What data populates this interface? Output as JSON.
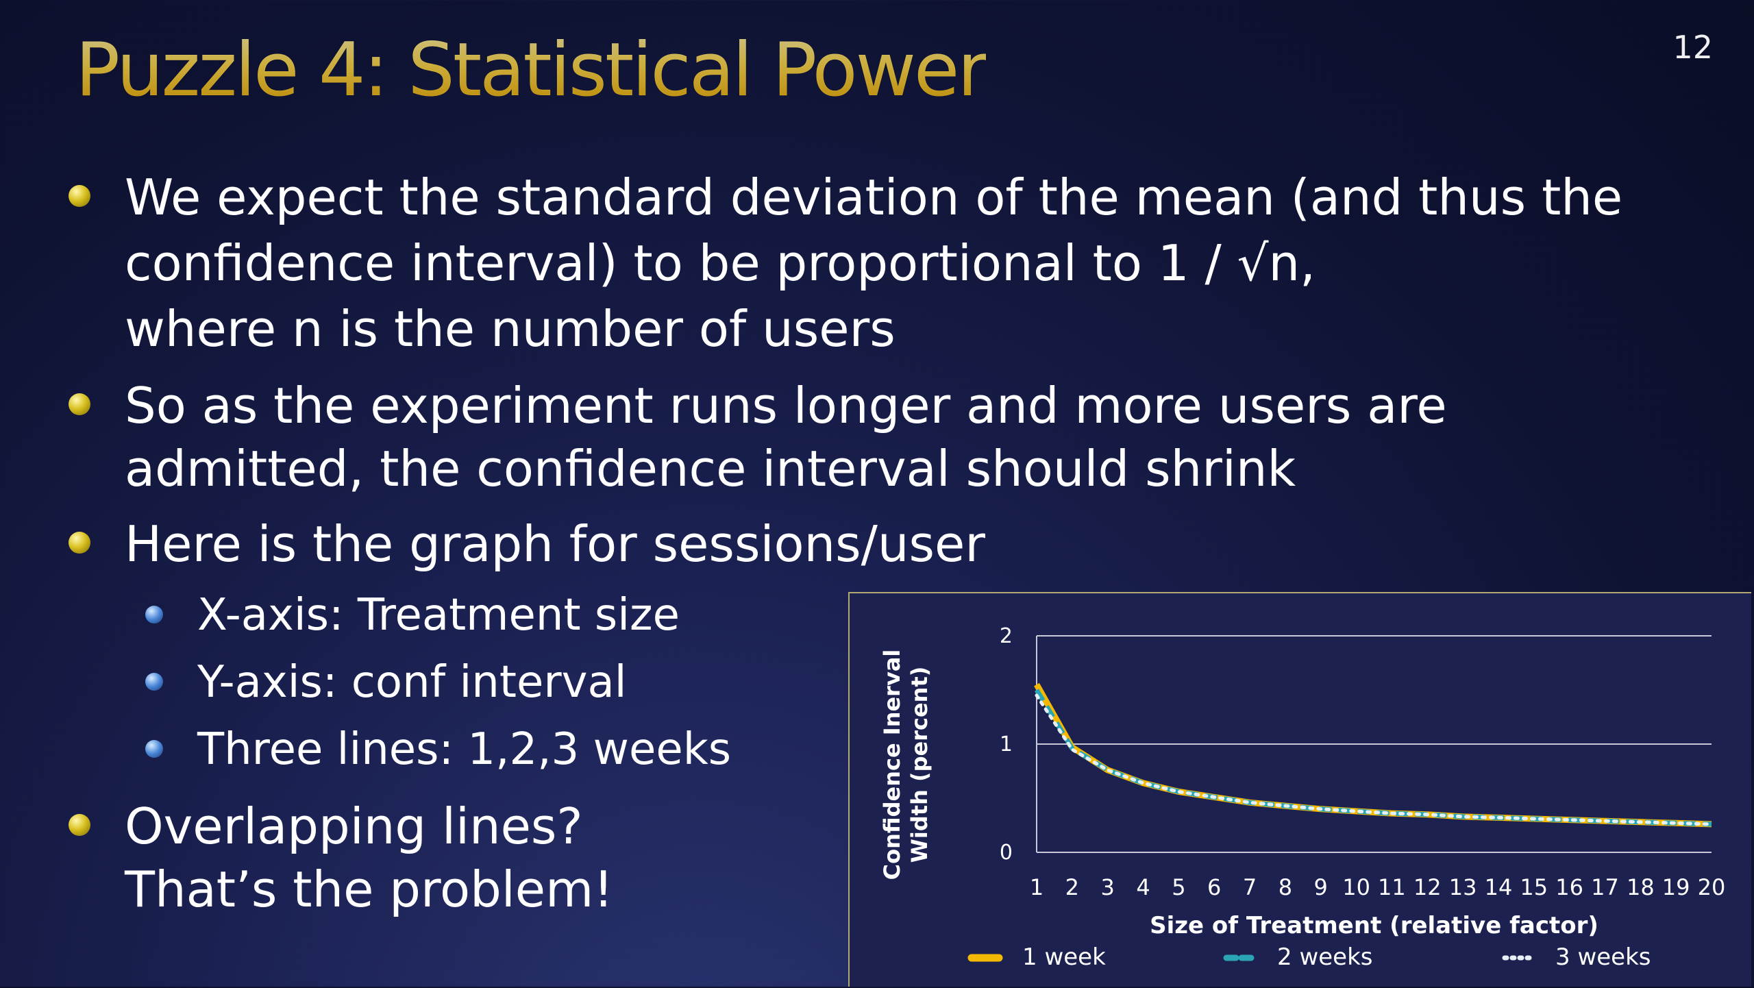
{
  "slide": {
    "number": "12",
    "title": "Puzzle 4: Statistical Power"
  },
  "bullets": [
    {
      "lines": [
        "We expect the standard deviation of the mean (and thus the",
        "confidence interval) to be proportional to 1 / √n,",
        "where n is the number of users"
      ]
    },
    {
      "lines": [
        "So as the experiment runs longer and more users are",
        "admitted, the confidence interval should shrink"
      ]
    },
    {
      "lines": [
        "Here is the graph for sessions/user"
      ],
      "sub": [
        "X-axis: Treatment size",
        "Y-axis: conf interval",
        "Three lines: 1,2,3 weeks"
      ]
    },
    {
      "lines": [
        "Overlapping lines?",
        "That’s the problem!"
      ]
    }
  ],
  "chart_data": {
    "type": "line",
    "title": "",
    "xlabel": "Size of Treatment (relative factor)",
    "ylabel": "Confidence Inerval Width (percent)",
    "ylabel_lines": [
      "Confidence Inerval",
      "Width (percent)"
    ],
    "x": [
      1,
      2,
      3,
      4,
      5,
      6,
      7,
      8,
      9,
      10,
      11,
      12,
      13,
      14,
      15,
      16,
      17,
      18,
      19,
      20
    ],
    "x_tick_labels": [
      "1",
      "2",
      "3",
      "4",
      "5",
      "6",
      "7",
      "8",
      "9",
      "10",
      "11",
      "12",
      "13",
      "14",
      "15",
      "16",
      "17",
      "18",
      "19",
      "20"
    ],
    "y_tick_labels": [
      "0",
      "1",
      "2"
    ],
    "ylim": [
      0,
      2
    ],
    "grid": true,
    "legend_position": "bottom",
    "series": [
      {
        "name": "1 week",
        "color": "#f5b800",
        "style": "solid",
        "values": [
          1.55,
          0.97,
          0.76,
          0.64,
          0.56,
          0.51,
          0.46,
          0.43,
          0.4,
          0.38,
          0.36,
          0.35,
          0.33,
          0.32,
          0.31,
          0.3,
          0.29,
          0.28,
          0.27,
          0.26
        ]
      },
      {
        "name": "2 weeks",
        "color": "#2aa5b5",
        "style": "dashed",
        "values": [
          1.5,
          0.96,
          0.76,
          0.64,
          0.56,
          0.51,
          0.46,
          0.43,
          0.4,
          0.38,
          0.36,
          0.35,
          0.33,
          0.32,
          0.31,
          0.3,
          0.29,
          0.28,
          0.27,
          0.26
        ]
      },
      {
        "name": "3 weeks",
        "color": "#e6f0f5",
        "style": "dotted",
        "values": [
          1.45,
          0.95,
          0.76,
          0.64,
          0.56,
          0.51,
          0.46,
          0.43,
          0.4,
          0.38,
          0.36,
          0.35,
          0.33,
          0.32,
          0.31,
          0.3,
          0.29,
          0.28,
          0.27,
          0.26
        ]
      }
    ]
  }
}
